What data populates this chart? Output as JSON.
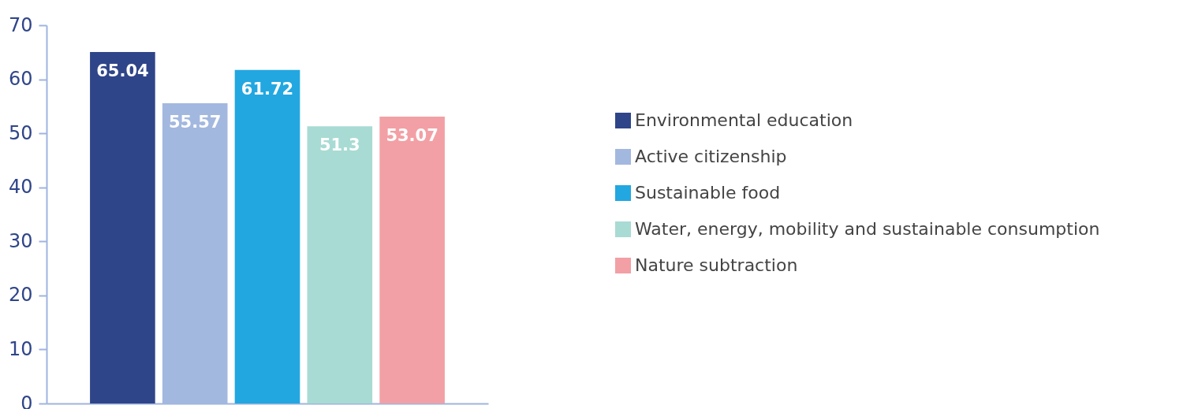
{
  "chart_data": {
    "type": "bar",
    "categories": [
      null
    ],
    "series": [
      {
        "name": "Environmental education",
        "color": "#2f4589",
        "values": [
          65.04
        ]
      },
      {
        "name": "Active citizenship",
        "color": "#a3b8df",
        "values": [
          55.57
        ]
      },
      {
        "name": "Sustainable food",
        "color": "#22a7e0",
        "values": [
          61.72
        ]
      },
      {
        "name": "Water, energy, mobility and sustainable consumption",
        "color": "#a8dbd3",
        "values": [
          51.3
        ]
      },
      {
        "name": "Nature subtraction",
        "color": "#f2a0a5",
        "values": [
          53.07
        ]
      }
    ],
    "ylim": [
      0,
      70
    ],
    "yticks": [
      0,
      10,
      20,
      30,
      40,
      50,
      60,
      70
    ],
    "data_labels": true,
    "legend": "right",
    "grid": false
  }
}
